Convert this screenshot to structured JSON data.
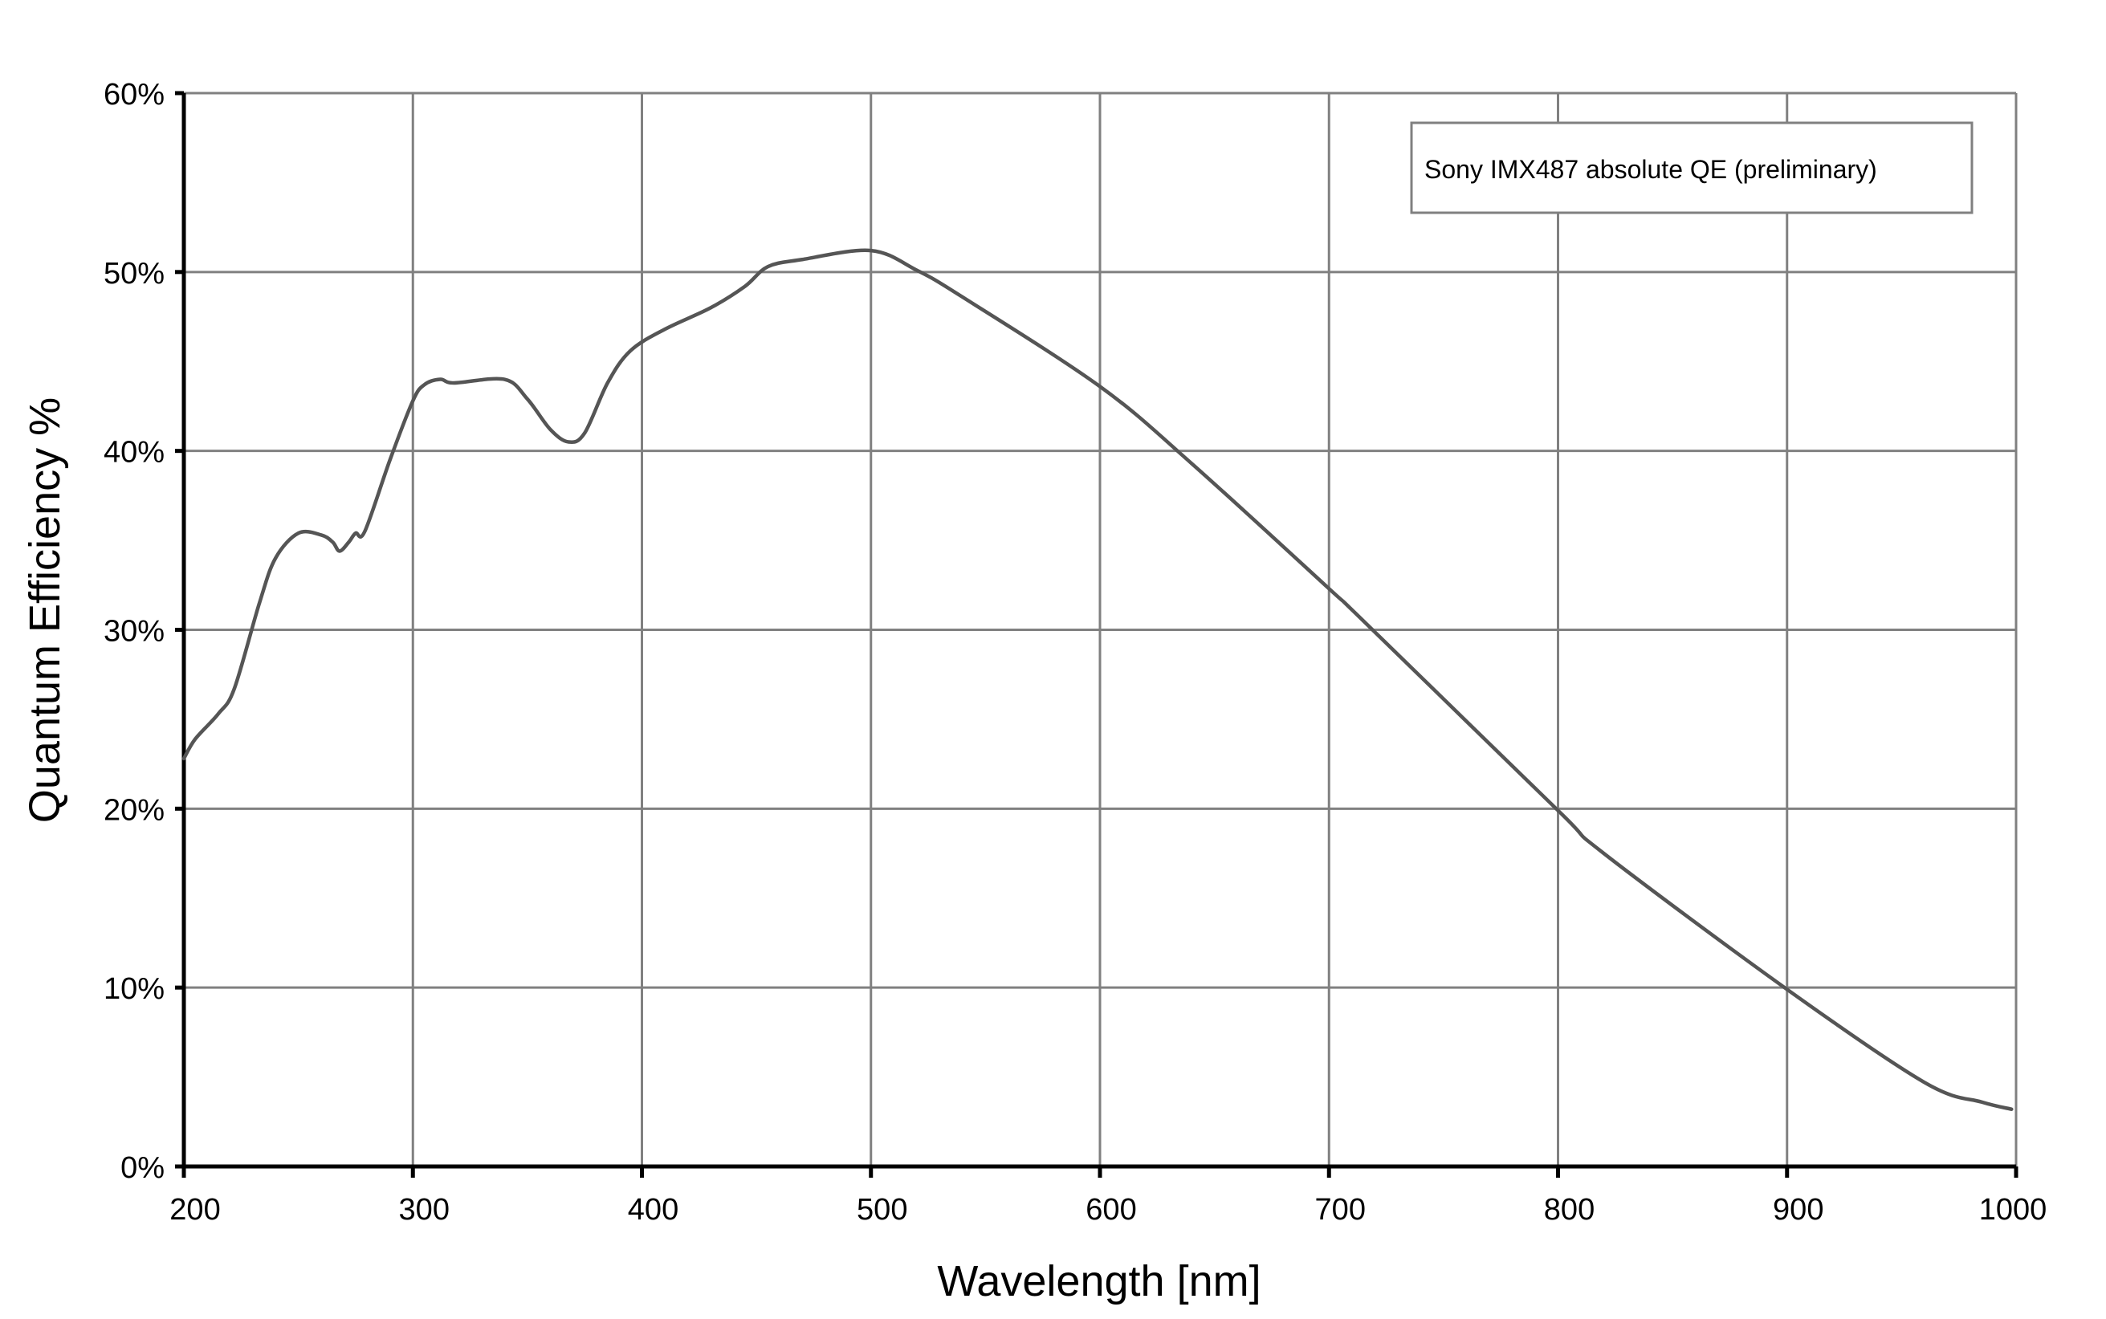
{
  "chart_data": {
    "type": "line",
    "title": "",
    "xlabel": "Wavelength [nm]",
    "ylabel": "Quantum Efficiency %",
    "xlim": [
      200,
      1000
    ],
    "ylim": [
      0,
      60
    ],
    "grid": true,
    "legend_position": "top-right",
    "x_ticks": [
      "200",
      "300",
      "400",
      "500",
      "600",
      "700",
      "800",
      "900",
      "1000"
    ],
    "y_ticks": [
      "0%",
      "10%",
      "20%",
      "30%",
      "40%",
      "50%",
      "60%"
    ],
    "series": [
      {
        "name": "Sony IMX487 absolute QE (preliminary)",
        "color": "#555555",
        "x": [
          200,
          205,
          215,
          222,
          233,
          240,
          250,
          260,
          265,
          268,
          272,
          275,
          279,
          290,
          300,
          305,
          312,
          318,
          340,
          350,
          360,
          368,
          375,
          385,
          395,
          410,
          430,
          445,
          455,
          470,
          500,
          520,
          540,
          600,
          640,
          700,
          715,
          800,
          820,
          900,
          960,
          985,
          998
        ],
        "y": [
          22.8,
          23.9,
          25.3,
          26.7,
          31.5,
          34.0,
          35.4,
          35.3,
          34.9,
          34.4,
          34.9,
          35.4,
          35.5,
          39.5,
          42.8,
          43.7,
          44.0,
          43.8,
          44.0,
          42.9,
          41.2,
          40.5,
          41.0,
          43.8,
          45.6,
          46.8,
          48.0,
          49.2,
          50.3,
          50.7,
          51.2,
          50.1,
          48.6,
          43.6,
          39.3,
          32.3,
          30.5,
          19.9,
          17.5,
          9.9,
          4.7,
          3.6,
          3.2
        ]
      }
    ]
  }
}
